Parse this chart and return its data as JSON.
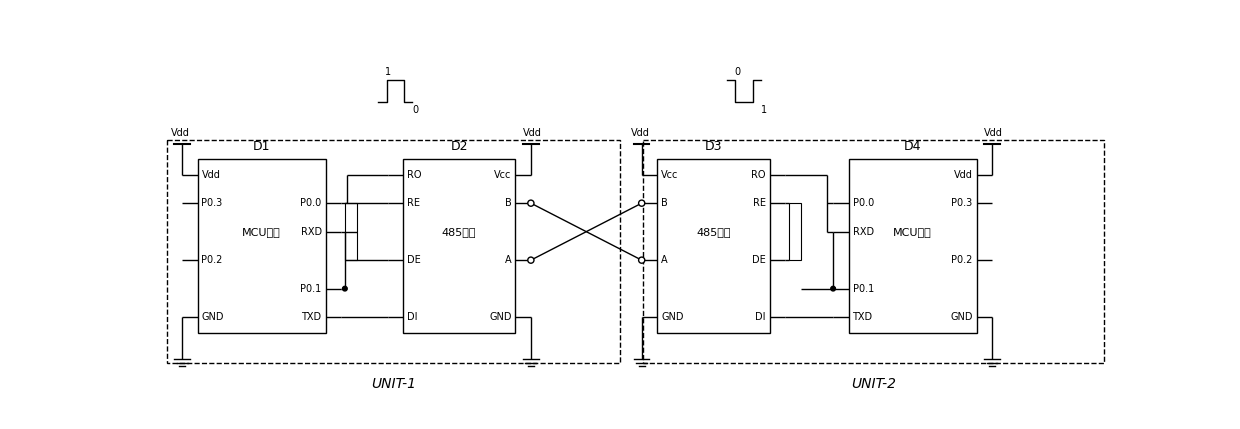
{
  "bg_color": "#ffffff",
  "line_color": "#000000",
  "fig_width": 12.4,
  "fig_height": 4.29,
  "dpi": 100,
  "unit1_label": "UNIT-1",
  "unit2_label": "UNIT-2",
  "d1_label": "D1",
  "d2_label": "D2",
  "d3_label": "D3",
  "d4_label": "D4",
  "d1_center_label": "MCU芯片",
  "d2_center_label": "485芯片",
  "d3_center_label": "485芯片",
  "d4_center_label": "MCU芯片",
  "d1_left_pins": [
    "Vdd",
    "P0.3",
    "",
    "P0.2",
    "",
    "GND"
  ],
  "d1_right_pins": [
    "",
    "P0.0",
    "RXD",
    "",
    "P0.1",
    "TXD"
  ],
  "d2_left_pins": [
    "RO",
    "RE",
    "",
    "DE",
    "",
    "DI"
  ],
  "d2_right_pins": [
    "Vcc",
    "B",
    "",
    "A",
    "",
    "GND"
  ],
  "d3_left_pins": [
    "Vcc",
    "B",
    "",
    "A",
    "",
    "GND"
  ],
  "d3_right_pins": [
    "RO",
    "RE",
    "",
    "DE",
    "",
    "DI"
  ],
  "d4_left_pins": [
    "",
    "P0.0",
    "RXD",
    "",
    "P0.1",
    "TXD"
  ],
  "d4_right_pins": [
    "Vdd",
    "P0.3",
    "",
    "P0.2",
    "",
    "GND"
  ]
}
